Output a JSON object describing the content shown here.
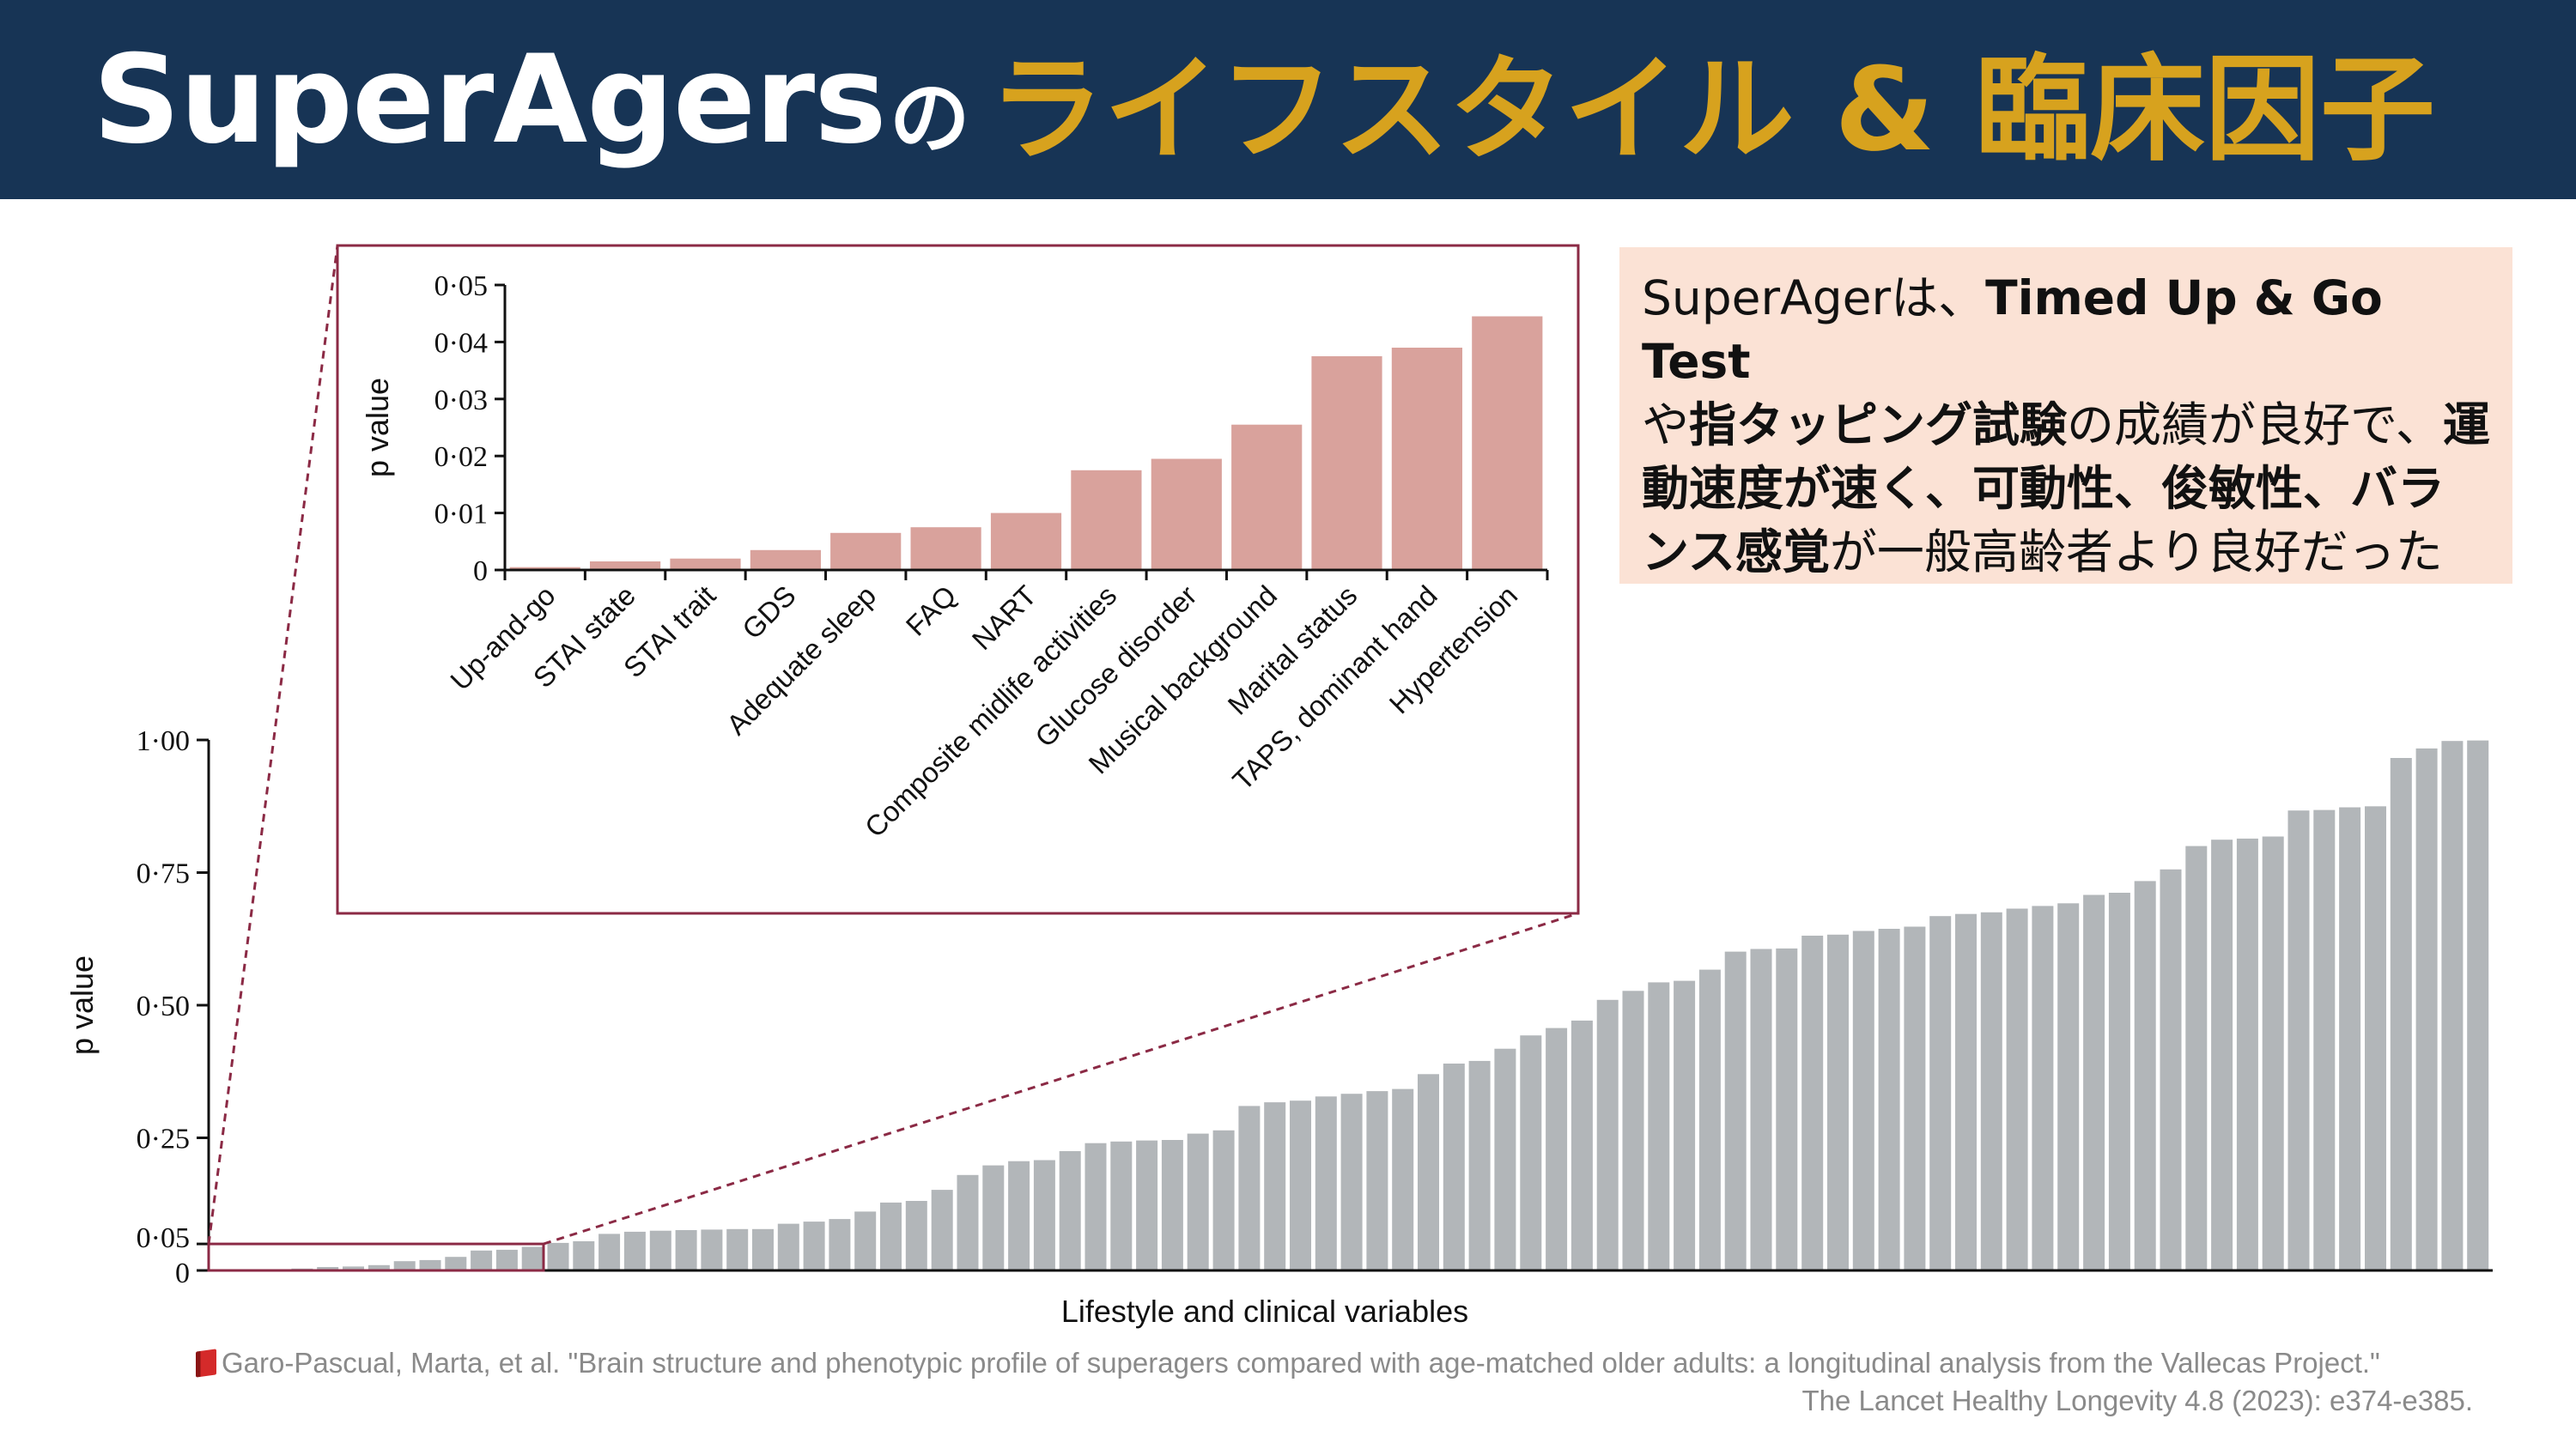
{
  "header": {
    "title_en": "SuperAgers",
    "title_no": "の",
    "title_jp": "ライフスタイル & 臨床因子"
  },
  "note": {
    "p1": "SuperAgerは、",
    "b1": "Timed Up & Go Test",
    "p2": "や",
    "b2": "指タッピング試験",
    "p3": "の成績が良好で、",
    "b3": "運動速度が速く、可動性、俊敏性、バランス感覚",
    "p4": "が一般高齢者より良好だった"
  },
  "colors": {
    "header_bg": "#173455",
    "title_accent": "#d7a21e",
    "note_bg": "#fbe2d5",
    "bar_gray": "#b2b6b9",
    "bar_pink": "#d9a29c",
    "highlight": "#8b2a45"
  },
  "chart_data": [
    {
      "type": "bar",
      "name": "main",
      "title": "",
      "xlabel": "Lifestyle and clinical variables",
      "ylabel": "p value",
      "ylim": [
        0,
        1.0
      ],
      "yticks": [
        "0",
        "0·05",
        "0·25",
        "0·50",
        "0·75",
        "1·00"
      ],
      "ytick_values": [
        0,
        0.05,
        0.25,
        0.5,
        0.75,
        1.0
      ],
      "highlight_range": [
        0,
        0.05
      ],
      "values": [
        0.0005,
        0.0015,
        0.002,
        0.0035,
        0.0065,
        0.0075,
        0.01,
        0.0175,
        0.0195,
        0.0255,
        0.0375,
        0.039,
        0.0445,
        0.052,
        0.055,
        0.069,
        0.073,
        0.075,
        0.076,
        0.077,
        0.078,
        0.078,
        0.088,
        0.092,
        0.097,
        0.111,
        0.128,
        0.131,
        0.152,
        0.18,
        0.198,
        0.206,
        0.208,
        0.225,
        0.24,
        0.243,
        0.245,
        0.246,
        0.258,
        0.264,
        0.31,
        0.317,
        0.32,
        0.328,
        0.333,
        0.338,
        0.342,
        0.37,
        0.39,
        0.395,
        0.418,
        0.443,
        0.457,
        0.471,
        0.51,
        0.527,
        0.543,
        0.546,
        0.567,
        0.601,
        0.606,
        0.607,
        0.631,
        0.633,
        0.64,
        0.644,
        0.648,
        0.668,
        0.672,
        0.675,
        0.682,
        0.687,
        0.692,
        0.708,
        0.712,
        0.734,
        0.756,
        0.8,
        0.812,
        0.814,
        0.818,
        0.867,
        0.868,
        0.873,
        0.875,
        0.966,
        0.984,
        0.998,
        0.999
      ]
    },
    {
      "type": "bar",
      "name": "inset",
      "title": "",
      "xlabel": "",
      "ylabel": "p value",
      "ylim": [
        0,
        0.05
      ],
      "yticks": [
        "0",
        "0·01",
        "0·02",
        "0·03",
        "0·04",
        "0·05"
      ],
      "ytick_values": [
        0,
        0.01,
        0.02,
        0.03,
        0.04,
        0.05
      ],
      "categories": [
        "Up-and-go",
        "STAI state",
        "STAI trait",
        "GDS",
        "Adequate sleep",
        "FAQ",
        "NART",
        "Composite midlife activities",
        "Glucose disorder",
        "Musical background",
        "Marital status",
        "TAPS, dominant hand",
        "Hypertension"
      ],
      "values": [
        0.0005,
        0.0015,
        0.002,
        0.0035,
        0.0065,
        0.0075,
        0.01,
        0.0175,
        0.0195,
        0.0255,
        0.0375,
        0.039,
        0.0445
      ]
    }
  ],
  "citation": {
    "line1": "Garo-Pascual, Marta, et al. \"Brain structure and phenotypic profile of superagers compared with age-matched older adults: a longitudinal analysis from the Vallecas Project.\"",
    "line2": "The Lancet Healthy Longevity 4.8 (2023): e374-e385."
  }
}
